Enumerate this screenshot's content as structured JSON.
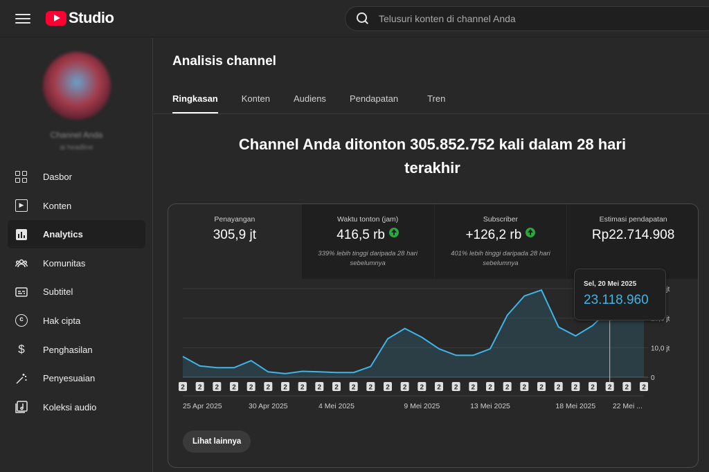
{
  "header": {
    "logo_text": "Studio",
    "search_placeholder": "Telusuri konten di channel Anda"
  },
  "sidebar": {
    "channel_name": "Channel Anda",
    "channel_handle": "ai headline",
    "items": [
      {
        "label": "Dasbor",
        "icon": "dashboard-icon"
      },
      {
        "label": "Konten",
        "icon": "content-icon"
      },
      {
        "label": "Analytics",
        "icon": "analytics-icon",
        "active": true
      },
      {
        "label": "Komunitas",
        "icon": "community-icon"
      },
      {
        "label": "Subtitel",
        "icon": "subtitles-icon"
      },
      {
        "label": "Hak cipta",
        "icon": "copyright-icon"
      },
      {
        "label": "Penghasilan",
        "icon": "earn-icon"
      },
      {
        "label": "Penyesuaian",
        "icon": "customization-icon"
      },
      {
        "label": "Koleksi audio",
        "icon": "audio-library-icon"
      }
    ]
  },
  "main": {
    "title": "Analisis channel",
    "tabs": [
      "Ringkasan",
      "Konten",
      "Audiens",
      "Pendapatan",
      "Tren"
    ],
    "headline": "Channel Anda ditonton 305.852.752 kali dalam 28 hari terakhir",
    "metrics": [
      {
        "label": "Penayangan",
        "value": "305,9 jt",
        "note": "",
        "trend_up": false
      },
      {
        "label": "Waktu tonton (jam)",
        "value": "416,5 rb",
        "note": "339% lebih tinggi daripada 28 hari sebelumnya",
        "trend_up": true
      },
      {
        "label": "Subscriber",
        "value": "+126,2 rb",
        "note": "401% lebih tinggi daripada 28 hari sebelumnya",
        "trend_up": true
      },
      {
        "label": "Estimasi pendapatan",
        "value": "Rp22.714.908",
        "note": "",
        "trend_up": false
      }
    ],
    "tooltip": {
      "date": "Sel, 20 Mei 2025",
      "value": "23.118.960"
    },
    "more_button": "Lihat lainnya",
    "accent_color": "#41b4e8"
  },
  "chart_data": {
    "type": "area",
    "x": [
      "25 Apr",
      "26 Apr",
      "27 Apr",
      "28 Apr",
      "29 Apr",
      "30 Apr",
      "1 Mei",
      "2 Mei",
      "3 Mei",
      "4 Mei",
      "5 Mei",
      "6 Mei",
      "7 Mei",
      "8 Mei",
      "9 Mei",
      "10 Mei",
      "11 Mei",
      "12 Mei",
      "13 Mei",
      "14 Mei",
      "15 Mei",
      "16 Mei",
      "17 Mei",
      "18 Mei",
      "19 Mei",
      "20 Mei",
      "21 Mei",
      "22 Mei"
    ],
    "values": [
      7.0,
      3.8,
      3.2,
      3.2,
      5.6,
      1.8,
      1.2,
      2.0,
      1.8,
      1.6,
      1.6,
      3.6,
      13.0,
      16.5,
      13.5,
      9.6,
      7.4,
      7.4,
      9.6,
      21.0,
      27.5,
      29.5,
      17.0,
      14.0,
      17.5,
      23.1,
      22.5,
      19.5
    ],
    "y_ticks": [
      "0",
      "10,0 jt",
      "20,0 jt",
      "30,0 jt"
    ],
    "ylim": [
      0,
      30
    ],
    "x_tick_labels": [
      "25 Apr 2025",
      "30 Apr 2025",
      "4 Mei 2025",
      "9 Mei 2025",
      "13 Mei 2025",
      "18 Mei 2025",
      "22 Mei ..."
    ],
    "x_tick_index": [
      0,
      5,
      9,
      14,
      18,
      23,
      27
    ],
    "marker_label": "2",
    "highlight_index": 25,
    "color": "#41b4e8"
  }
}
